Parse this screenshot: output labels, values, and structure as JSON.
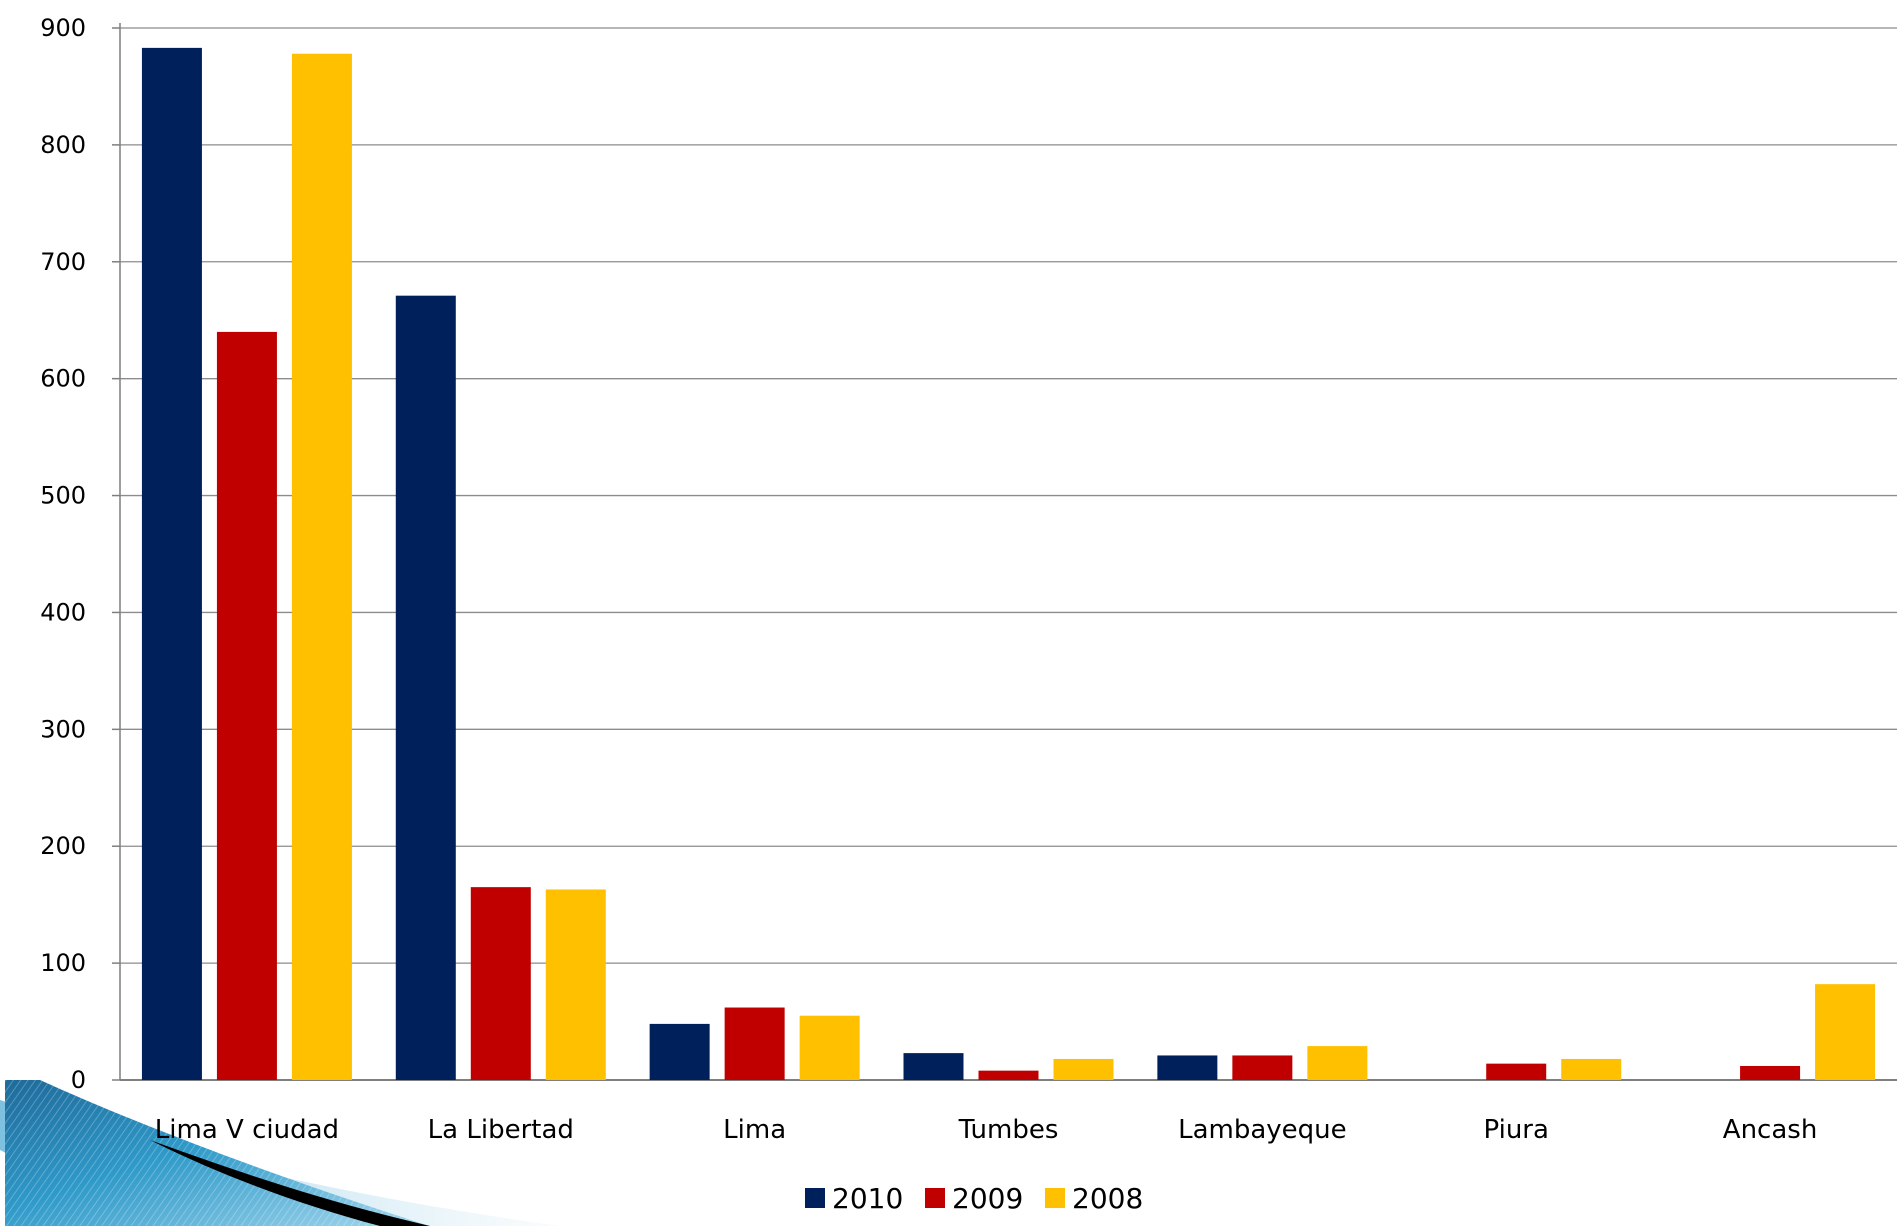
{
  "chart_data": {
    "type": "bar",
    "categories": [
      "Lima V ciudad",
      "La Libertad",
      "Lima",
      "Tumbes",
      "Lambayeque",
      "Piura",
      "Ancash"
    ],
    "series": [
      {
        "name": "2010",
        "color": "#00205b",
        "values": [
          883,
          671,
          48,
          23,
          21,
          null,
          null
        ]
      },
      {
        "name": "2009",
        "color": "#c00000",
        "values": [
          640,
          165,
          62,
          8,
          21,
          14,
          12
        ]
      },
      {
        "name": "2008",
        "color": "#ffc000",
        "values": [
          878,
          163,
          55,
          18,
          29,
          18,
          82
        ]
      }
    ],
    "ylim": [
      0,
      900
    ],
    "yticks": [
      0,
      100,
      200,
      300,
      400,
      500,
      600,
      700,
      800,
      900
    ],
    "grid": true,
    "legend": "bottom-center",
    "title": "",
    "xlabel": "",
    "ylabel": ""
  }
}
